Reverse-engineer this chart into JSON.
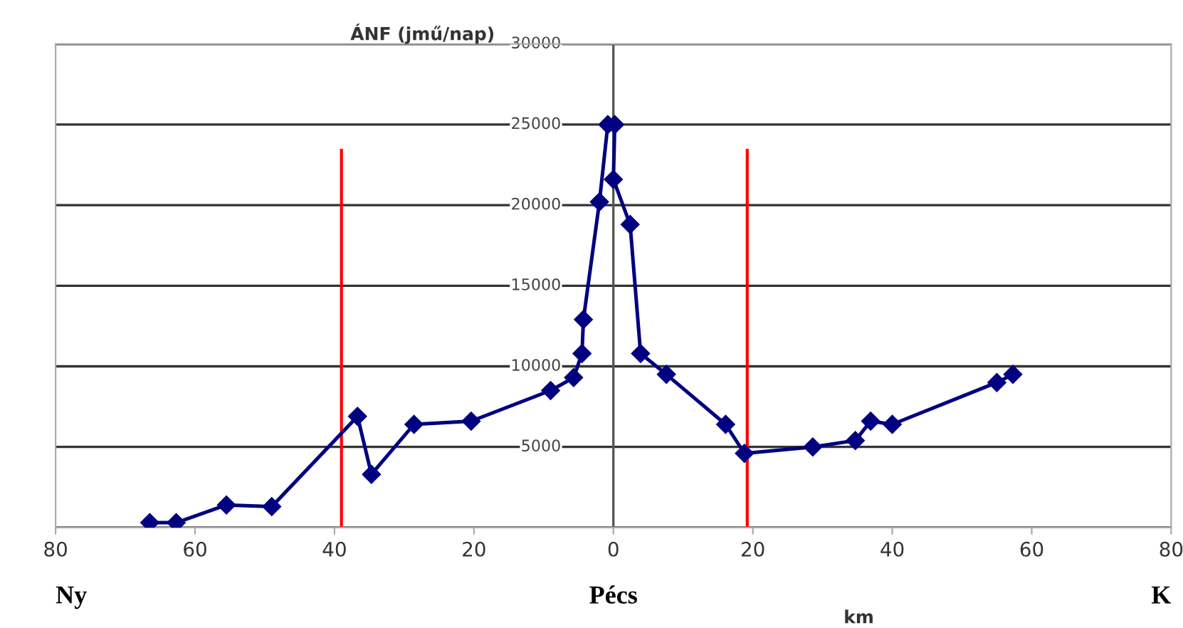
{
  "chart_data": {
    "type": "line",
    "ylabel": "ÁNF (jmű/nap)",
    "xlabel": "km",
    "annotations": [
      "Ny",
      "Pécs",
      "K"
    ],
    "x": [
      -66.5,
      -62.7,
      -55.5,
      -49,
      -36.7,
      -34.7,
      -28.6,
      -20.4,
      -9,
      -5.7,
      -4.5,
      -4.3,
      -2,
      -0.8,
      0.2,
      0,
      2.4,
      3.9,
      7.6,
      16.1,
      18.8,
      28.6,
      34.7,
      36.9,
      40,
      55,
      57.3
    ],
    "series": [
      {
        "color": "#000080",
        "values": [
          300,
          300,
          1400,
          1300,
          6900,
          3300,
          6400,
          6600,
          8500,
          9300,
          10800,
          12900,
          20200,
          25000,
          25000,
          21600,
          18800,
          10800,
          9500,
          6400,
          4600,
          5000,
          5400,
          6600,
          6400,
          9000,
          9500
        ]
      }
    ],
    "xlim": [
      -80,
      80
    ],
    "xticks": [
      {
        "value": -80,
        "label": "80"
      },
      {
        "value": -60,
        "label": "60"
      },
      {
        "value": -40,
        "label": "40"
      },
      {
        "value": -20,
        "label": "20"
      },
      0,
      20,
      40,
      60,
      80
    ],
    "ylim": [
      0,
      30000
    ],
    "yticks": [
      {
        "value": 0,
        "label": null
      },
      5000,
      10000,
      15000,
      20000,
      25000,
      30000
    ],
    "ref_lines": [
      {
        "axis": "x",
        "value": -39,
        "label": null,
        "color": "#ff0000"
      },
      {
        "axis": "x",
        "value": 19.2,
        "label": null,
        "color": "#ff0000"
      }
    ],
    "grid": "y",
    "marker": "diamond",
    "line_style": "solid",
    "legend": false
  }
}
